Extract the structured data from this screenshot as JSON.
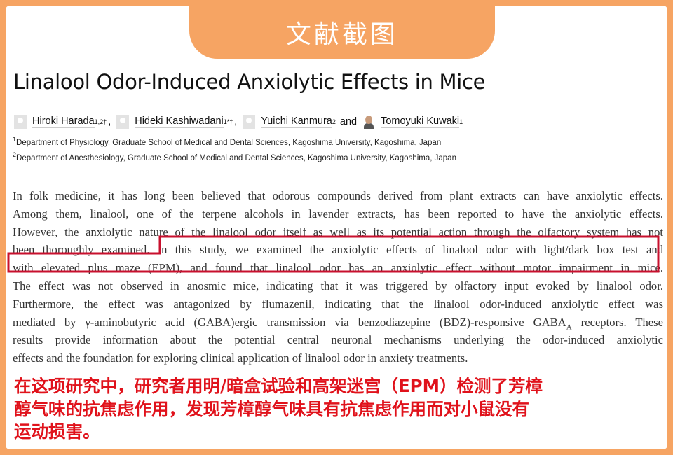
{
  "banner": "文献截图",
  "title": "Linalool Odor-Induced Anxiolytic Effects in Mice",
  "authors": [
    {
      "name": "Hiroki Harada",
      "sup": "1,2†",
      "sep": ","
    },
    {
      "name": "Hideki Kashiwadani",
      "sup": "1*†",
      "sep": ","
    },
    {
      "name": "Yuichi Kanmura",
      "sup": "2",
      "sep": "and"
    },
    {
      "name": "Tomoyuki Kuwaki",
      "sup": "1",
      "sep": ""
    }
  ],
  "affiliations": [
    {
      "sup": "1",
      "text": "Department of Physiology, Graduate School of Medical and Dental Sciences, Kagoshima University, Kagoshima, Japan"
    },
    {
      "sup": "2",
      "text": "Department of Anesthesiology, Graduate School of Medical and Dental Sciences, Kagoshima University, Kagoshima, Japan"
    }
  ],
  "abstract_lines": [
    "In folk medicine, it has long been believed that odorous compounds derived from plant extracts can have anxiolytic effects.",
    "Among them, linalool, one of the terpene alcohols in lavender extracts, has been reported to have the anxiolytic effects.",
    "However, the anxiolytic nature of the linalool odor itself as well as its potential action through the olfactory system has not",
    "been thoroughly examined. In this study, we examined the anxiolytic effects of linalool odor with light/dark box test and",
    "with elevated plus maze (EPM), and found that linalool odor has an anxiolytic effect without motor impairment in mice.",
    "The effect was not observed in anosmic mice, indicating that it was triggered by olfactory input evoked by linalool odor.",
    "Furthermore, the effect was antagonized by flumazenil, indicating that the linalool odor-induced anxiolytic effect was",
    "mediated by γ-aminobutyric acid (GABA)ergic transmission via benzodiazepine (BDZ)-responsive GABA",
    "results provide information about the potential central neuronal mechanisms underlying the odor-induced anxiolytic",
    "effects and the foundation for exploring clinical application of linalool odor in anxiety treatments."
  ],
  "abstract_line8_sub": "A",
  "abstract_line8_tail": " receptors. These",
  "highlight_color": "#C8102E",
  "translation_lines": [
    "在这项研究中，研究者用明/暗盒试验和高架迷宫（EPM）检测了芳樟",
    "醇气味的抗焦虑作用，发现芳樟醇气味具有抗焦虑作用而对小鼠没有",
    "运动损害。"
  ],
  "colors": {
    "frame": "#F6A463",
    "translation": "#E0121B"
  }
}
